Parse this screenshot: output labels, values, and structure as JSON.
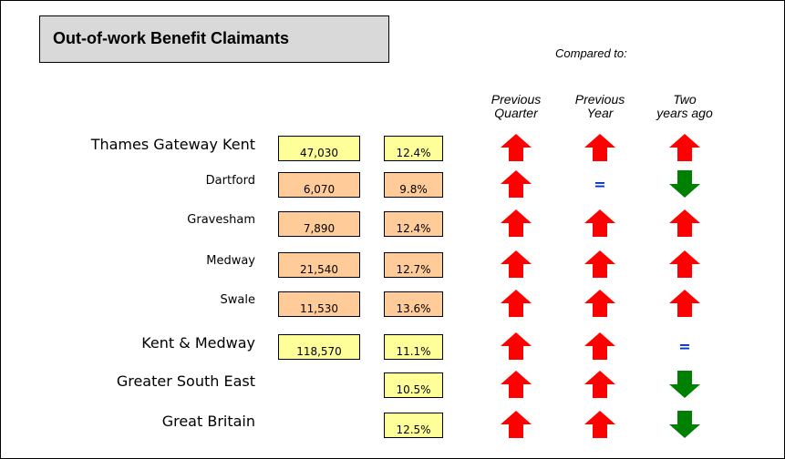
{
  "title": "Out-of-work Benefit Claimants",
  "compared_to": "Compared to:",
  "columns": [
    [
      "Previous",
      "Quarter"
    ],
    [
      "Previous",
      "Year"
    ],
    [
      "Two",
      "years ago"
    ]
  ],
  "rows": [
    {
      "name": "Thames Gateway Kent",
      "count": "47,030",
      "percent": "12.4%",
      "color": "#ffff99",
      "major": true,
      "trends": [
        "up",
        "up",
        "up"
      ]
    },
    {
      "name": "Dartford",
      "count": "6,070",
      "percent": "9.8%",
      "color": "#ffcc99",
      "major": false,
      "trends": [
        "up",
        "=",
        "down"
      ]
    },
    {
      "name": "Gravesham",
      "count": "7,890",
      "percent": "12.4%",
      "color": "#ffcc99",
      "major": false,
      "trends": [
        "up",
        "up",
        "up"
      ]
    },
    {
      "name": "Medway",
      "count": "21,540",
      "percent": "12.7%",
      "color": "#ffcc99",
      "major": false,
      "trends": [
        "up",
        "up",
        "up"
      ]
    },
    {
      "name": "Swale",
      "count": "11,530",
      "percent": "13.6%",
      "color": "#ffcc99",
      "major": false,
      "trends": [
        "up",
        "up",
        "up"
      ]
    },
    {
      "name": "Kent & Medway",
      "count": "118,570",
      "percent": "11.1%",
      "color": "#ffff99",
      "major": true,
      "trends": [
        "up",
        "up",
        "="
      ]
    },
    {
      "name": "Greater South East",
      "percent": "10.5%",
      "color": "#ffff99",
      "major": true,
      "trends": [
        "up",
        "up",
        "down"
      ]
    },
    {
      "name": "Great Britain",
      "percent": "12.5%",
      "color": "#ffff99",
      "major": true,
      "trends": [
        "up",
        "up",
        "down"
      ]
    }
  ]
}
